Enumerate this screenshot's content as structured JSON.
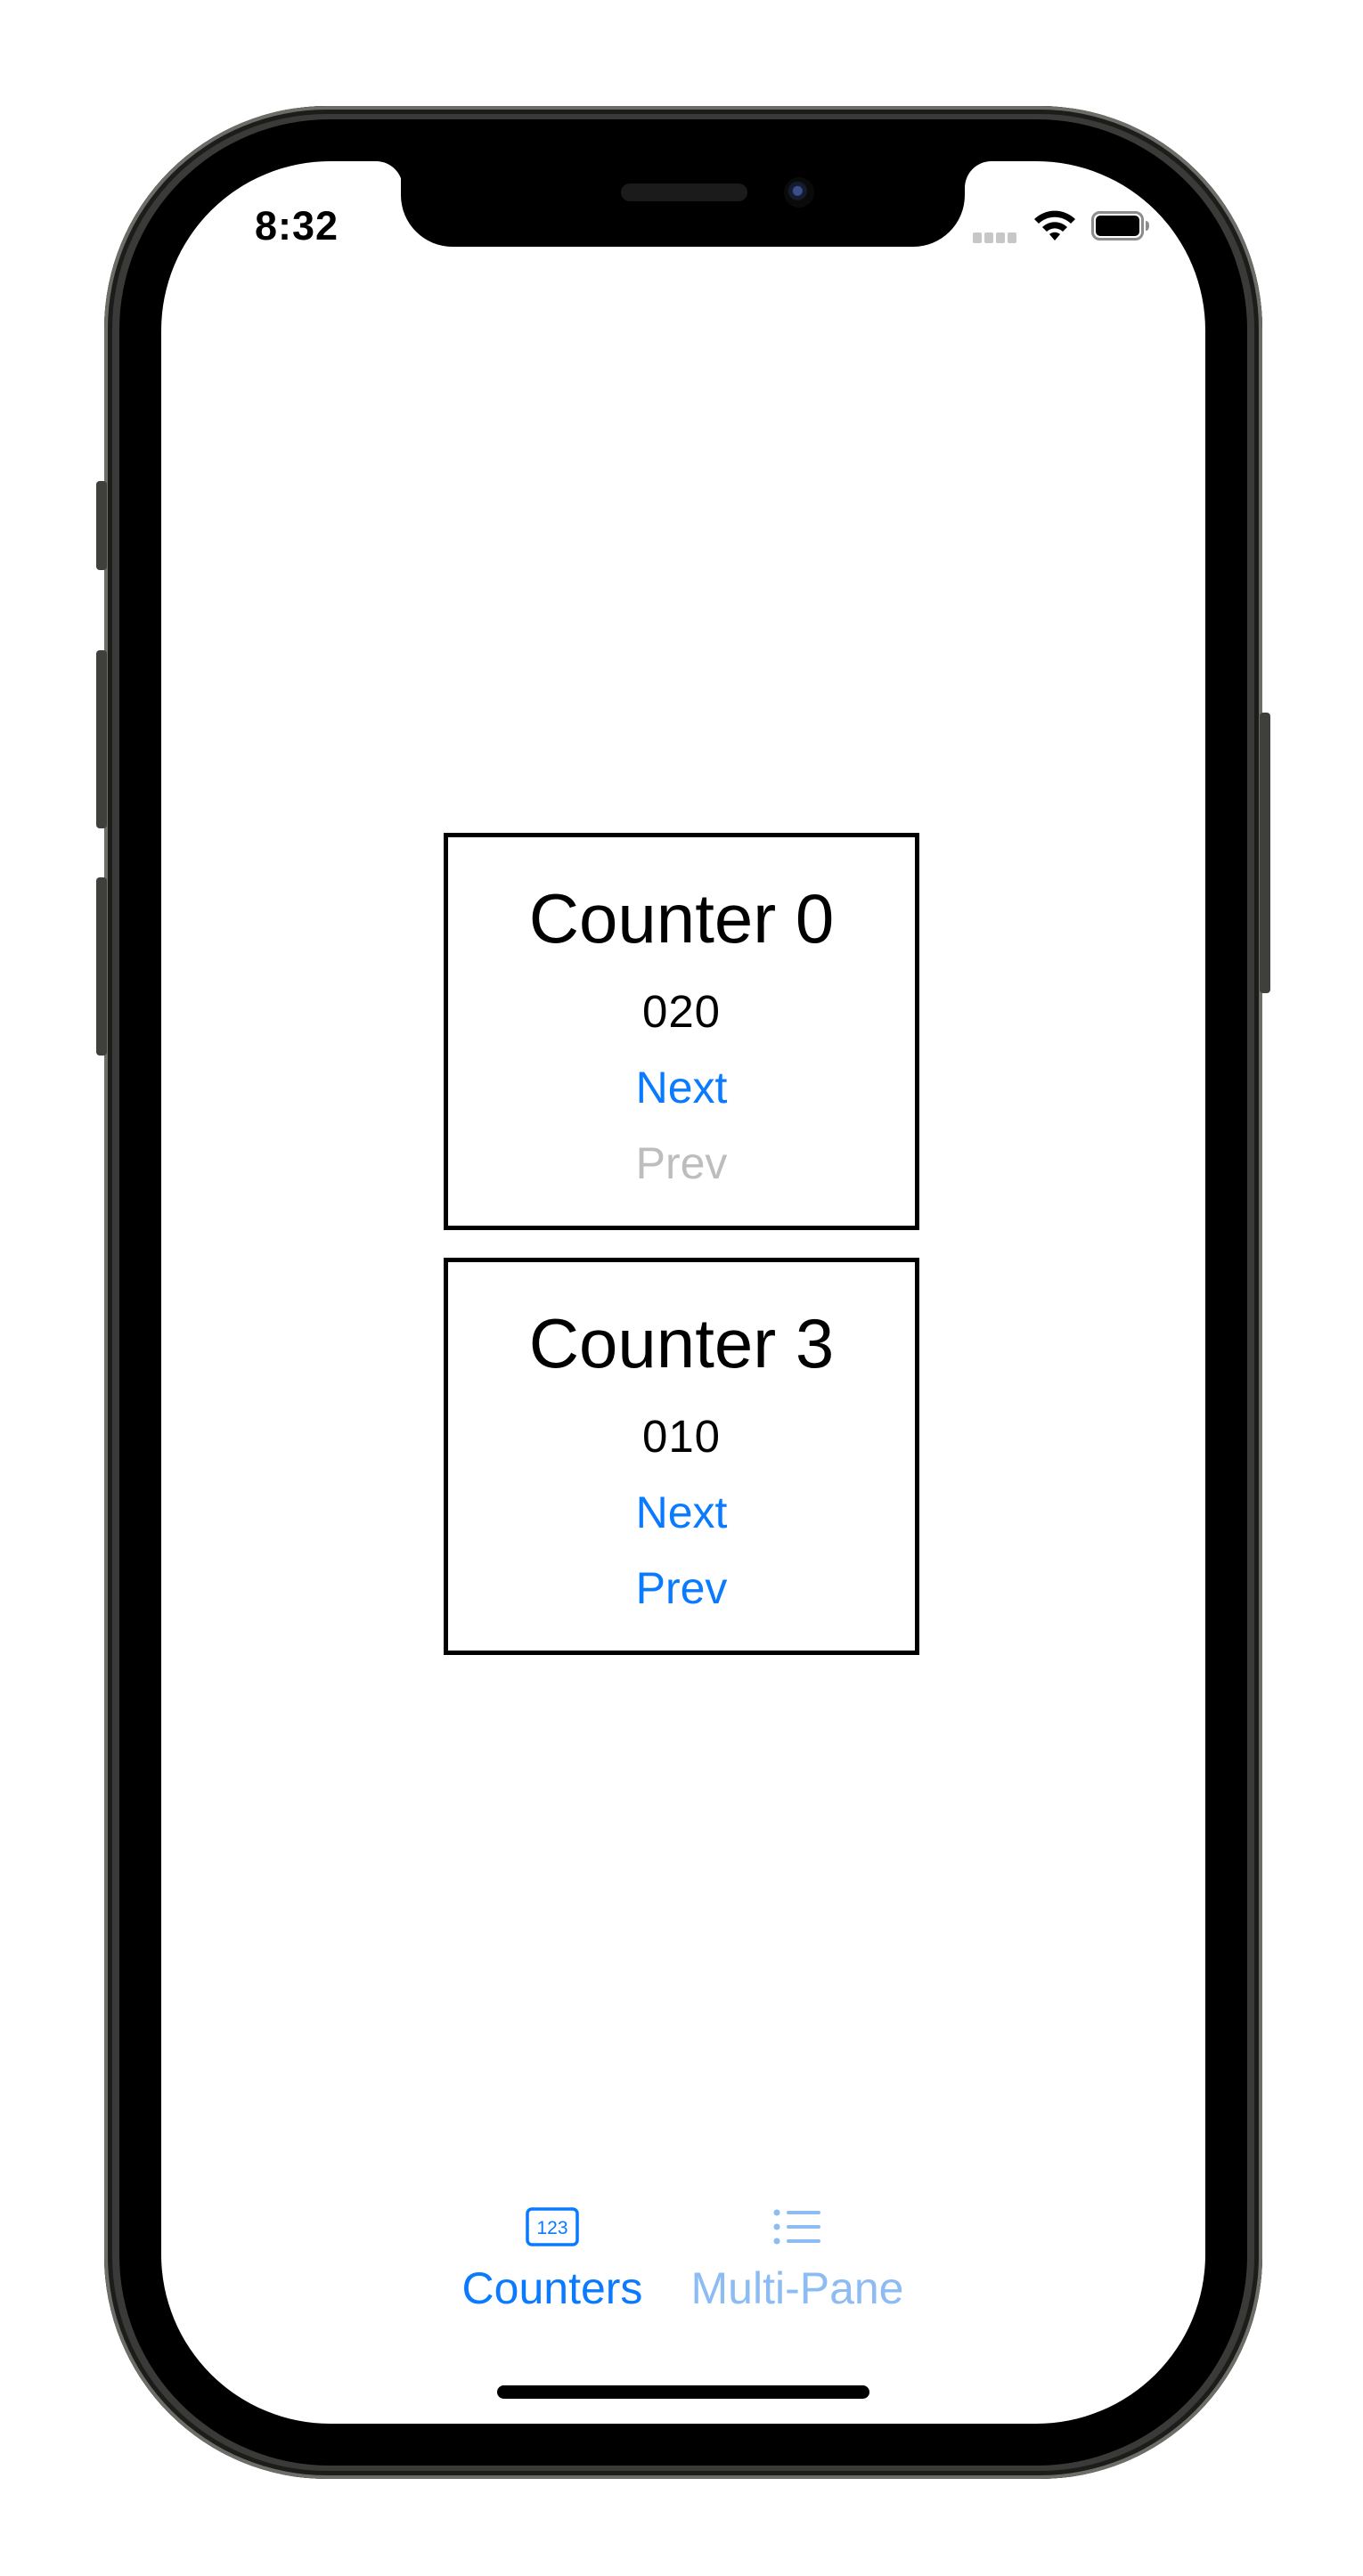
{
  "status_bar": {
    "time": "8:32"
  },
  "counters": [
    {
      "title": "Counter 0",
      "value": "020",
      "next_label": "Next",
      "prev_label": "Prev",
      "prev_enabled": false
    },
    {
      "title": "Counter 3",
      "value": "010",
      "next_label": "Next",
      "prev_label": "Prev",
      "prev_enabled": true
    }
  ],
  "tab_bar": {
    "tabs": [
      {
        "label": "Counters",
        "icon": "number-123-icon",
        "selected": true
      },
      {
        "label": "Multi-Pane",
        "icon": "list-bullet-icon",
        "selected": false
      }
    ]
  },
  "colors": {
    "accent": "#0a7aff",
    "accent_inactive": "#8cbcf3",
    "disabled": "#bdbdbd"
  }
}
